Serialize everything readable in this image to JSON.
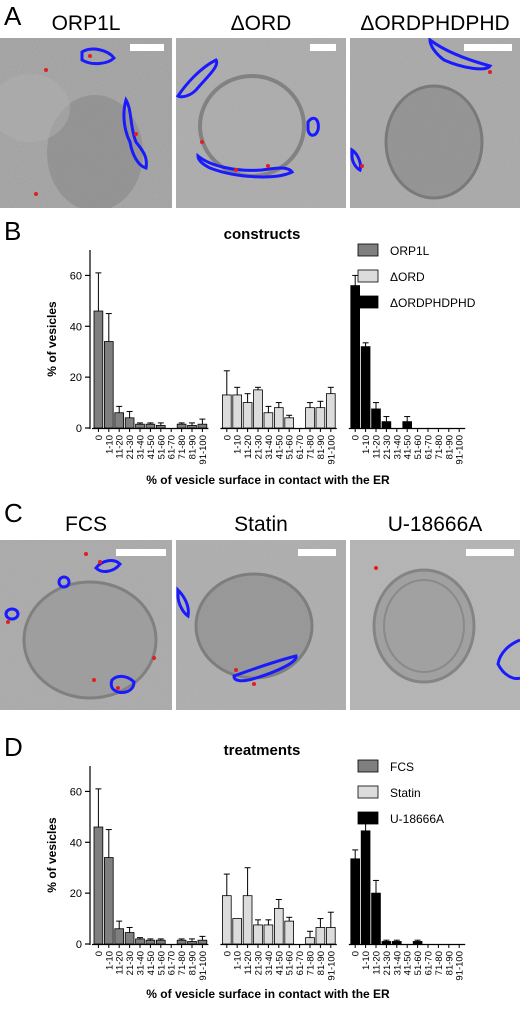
{
  "panels": {
    "A": {
      "letter": "A",
      "labels": [
        "ORP1L",
        "ΔORD",
        "ΔORDPHDPHD"
      ]
    },
    "B": {
      "letter": "B"
    },
    "C": {
      "letter": "C",
      "labels": [
        "FCS",
        "Statin",
        "U-18666A"
      ]
    },
    "D": {
      "letter": "D"
    }
  },
  "colors": {
    "series_dark": "#7f7f7f",
    "series_light": "#dcdcdc",
    "series_black": "#000000",
    "trace_blue": "#1a1aff",
    "dot_red": "#e02020"
  },
  "chart_data": [
    {
      "type": "bar",
      "title": "constructs",
      "xlabel": "% of vesicle surface in contact with the ER",
      "ylabel": "% of vesicles",
      "ylim": [
        0,
        70
      ],
      "yticks": [
        0,
        20,
        40,
        60
      ],
      "categories": [
        "0",
        "1-10",
        "11-20",
        "21-30",
        "31-40",
        "41-50",
        "51-60",
        "61-70",
        "71-80",
        "81-90",
        "91-100"
      ],
      "legend_position": "top-right",
      "series": [
        {
          "name": "ORP1L",
          "color": "#7f7f7f",
          "values": [
            46,
            34,
            6,
            4,
            1.5,
            1.5,
            1,
            0,
            1.5,
            1,
            1.5
          ],
          "errors": [
            15,
            11,
            2.5,
            2.5,
            0.5,
            0.5,
            1,
            0,
            0.5,
            1,
            2
          ]
        },
        {
          "name": "ΔORD",
          "color": "#dcdcdc",
          "values": [
            13,
            13,
            10,
            15,
            6,
            8,
            4,
            0,
            8,
            8,
            13.5
          ],
          "errors": [
            9.5,
            3,
            3.5,
            1,
            2.5,
            2,
            1,
            0,
            2,
            2.5,
            2.5
          ]
        },
        {
          "name": "ΔORDPHDPHD",
          "color": "#000000",
          "values": [
            56,
            32,
            7.5,
            2.5,
            0,
            2.5,
            0,
            0,
            0,
            0,
            0
          ],
          "errors": [
            4,
            1.5,
            2.5,
            2,
            0,
            2,
            0,
            0,
            0,
            0,
            0
          ]
        }
      ]
    },
    {
      "type": "bar",
      "title": "treatments",
      "xlabel": "% of vesicle surface in contact with the ER",
      "ylabel": "% of vesicles",
      "ylim": [
        0,
        70
      ],
      "yticks": [
        0,
        20,
        40,
        60
      ],
      "categories": [
        "0",
        "1-10",
        "11-20",
        "21-30",
        "31-40",
        "41-50",
        "51-60",
        "61-70",
        "71-80",
        "81-90",
        "91-100"
      ],
      "legend_position": "top-right",
      "series": [
        {
          "name": "FCS",
          "color": "#7f7f7f",
          "values": [
            46,
            34,
            6,
            4.5,
            2,
            1.5,
            1.5,
            0,
            1.5,
            1,
            1.5
          ],
          "errors": [
            15,
            11,
            3,
            2,
            0.5,
            0.5,
            0.5,
            0,
            0.5,
            1,
            1.5
          ]
        },
        {
          "name": "Statin",
          "color": "#dcdcdc",
          "values": [
            19,
            10,
            19,
            7.5,
            7.5,
            14,
            9,
            0,
            2.5,
            6.5,
            6.5
          ],
          "errors": [
            8.5,
            0,
            11,
            2,
            2,
            3.5,
            1.5,
            0,
            2.5,
            3.5,
            6
          ]
        },
        {
          "name": "U-18666A",
          "color": "#000000",
          "values": [
            33.5,
            44.5,
            20,
            1,
            1,
            0,
            1,
            0,
            0,
            0,
            0
          ],
          "errors": [
            3.5,
            4,
            5,
            0.5,
            0.5,
            0,
            0.5,
            0,
            0,
            0,
            0
          ]
        }
      ]
    }
  ]
}
